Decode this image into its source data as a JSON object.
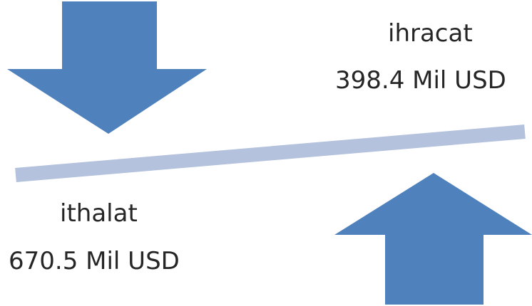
{
  "colors": {
    "arrow": "#4f81bd",
    "balance_bar": "#b4c2de",
    "text": "#262626"
  },
  "export": {
    "label": "ihracat",
    "value": "398.4 Mil USD",
    "arrow_icon": "arrow-up-icon"
  },
  "import": {
    "label": "ithalat",
    "value": "670.5 Mil USD",
    "arrow_icon": "arrow-down-icon"
  }
}
